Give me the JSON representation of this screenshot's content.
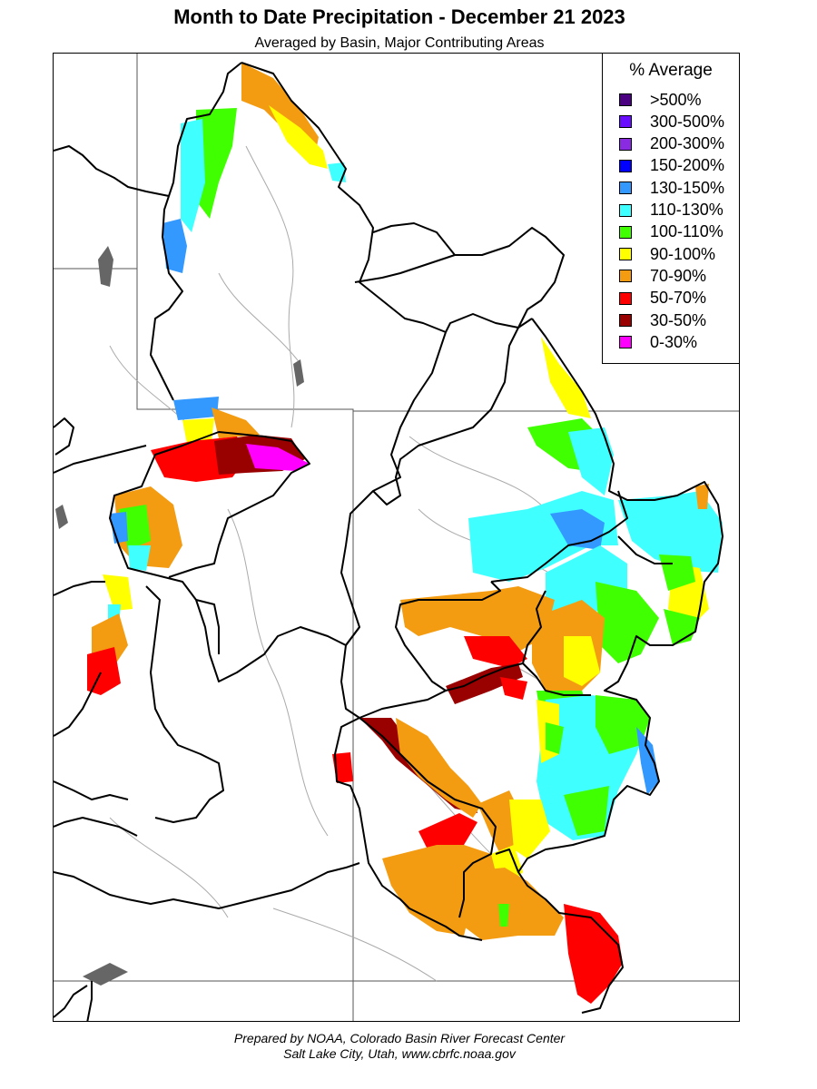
{
  "header": {
    "title": "Month to Date Precipitation - December 21 2023",
    "subtitle": "Averaged by Basin, Major Contributing Areas"
  },
  "legend": {
    "title": "% Average",
    "items": [
      {
        "label": ">500%",
        "color": "#4b0082"
      },
      {
        "label": "300-500%",
        "color": "#6a0dff"
      },
      {
        "label": "200-300%",
        "color": "#8a2be2"
      },
      {
        "label": "150-200%",
        "color": "#0000ff"
      },
      {
        "label": "130-150%",
        "color": "#3399ff"
      },
      {
        "label": "110-130%",
        "color": "#40ffff"
      },
      {
        "label": "100-110%",
        "color": "#40ff00"
      },
      {
        "label": "90-100%",
        "color": "#ffff00"
      },
      {
        "label": "70-90%",
        "color": "#f39c12"
      },
      {
        "label": "50-70%",
        "color": "#ff0000"
      },
      {
        "label": "30-50%",
        "color": "#990000"
      },
      {
        "label": "0-30%",
        "color": "#ff00ff"
      }
    ]
  },
  "credits": {
    "line1": "Prepared by NOAA, Colorado Basin River Forecast Center",
    "line2": "Salt Lake City, Utah, www.cbrfc.noaa.gov"
  },
  "map_colors": {
    "basin_border": "#000000",
    "state_line": "#555555",
    "river": "#aaaaaa",
    "lake": "#666666"
  }
}
